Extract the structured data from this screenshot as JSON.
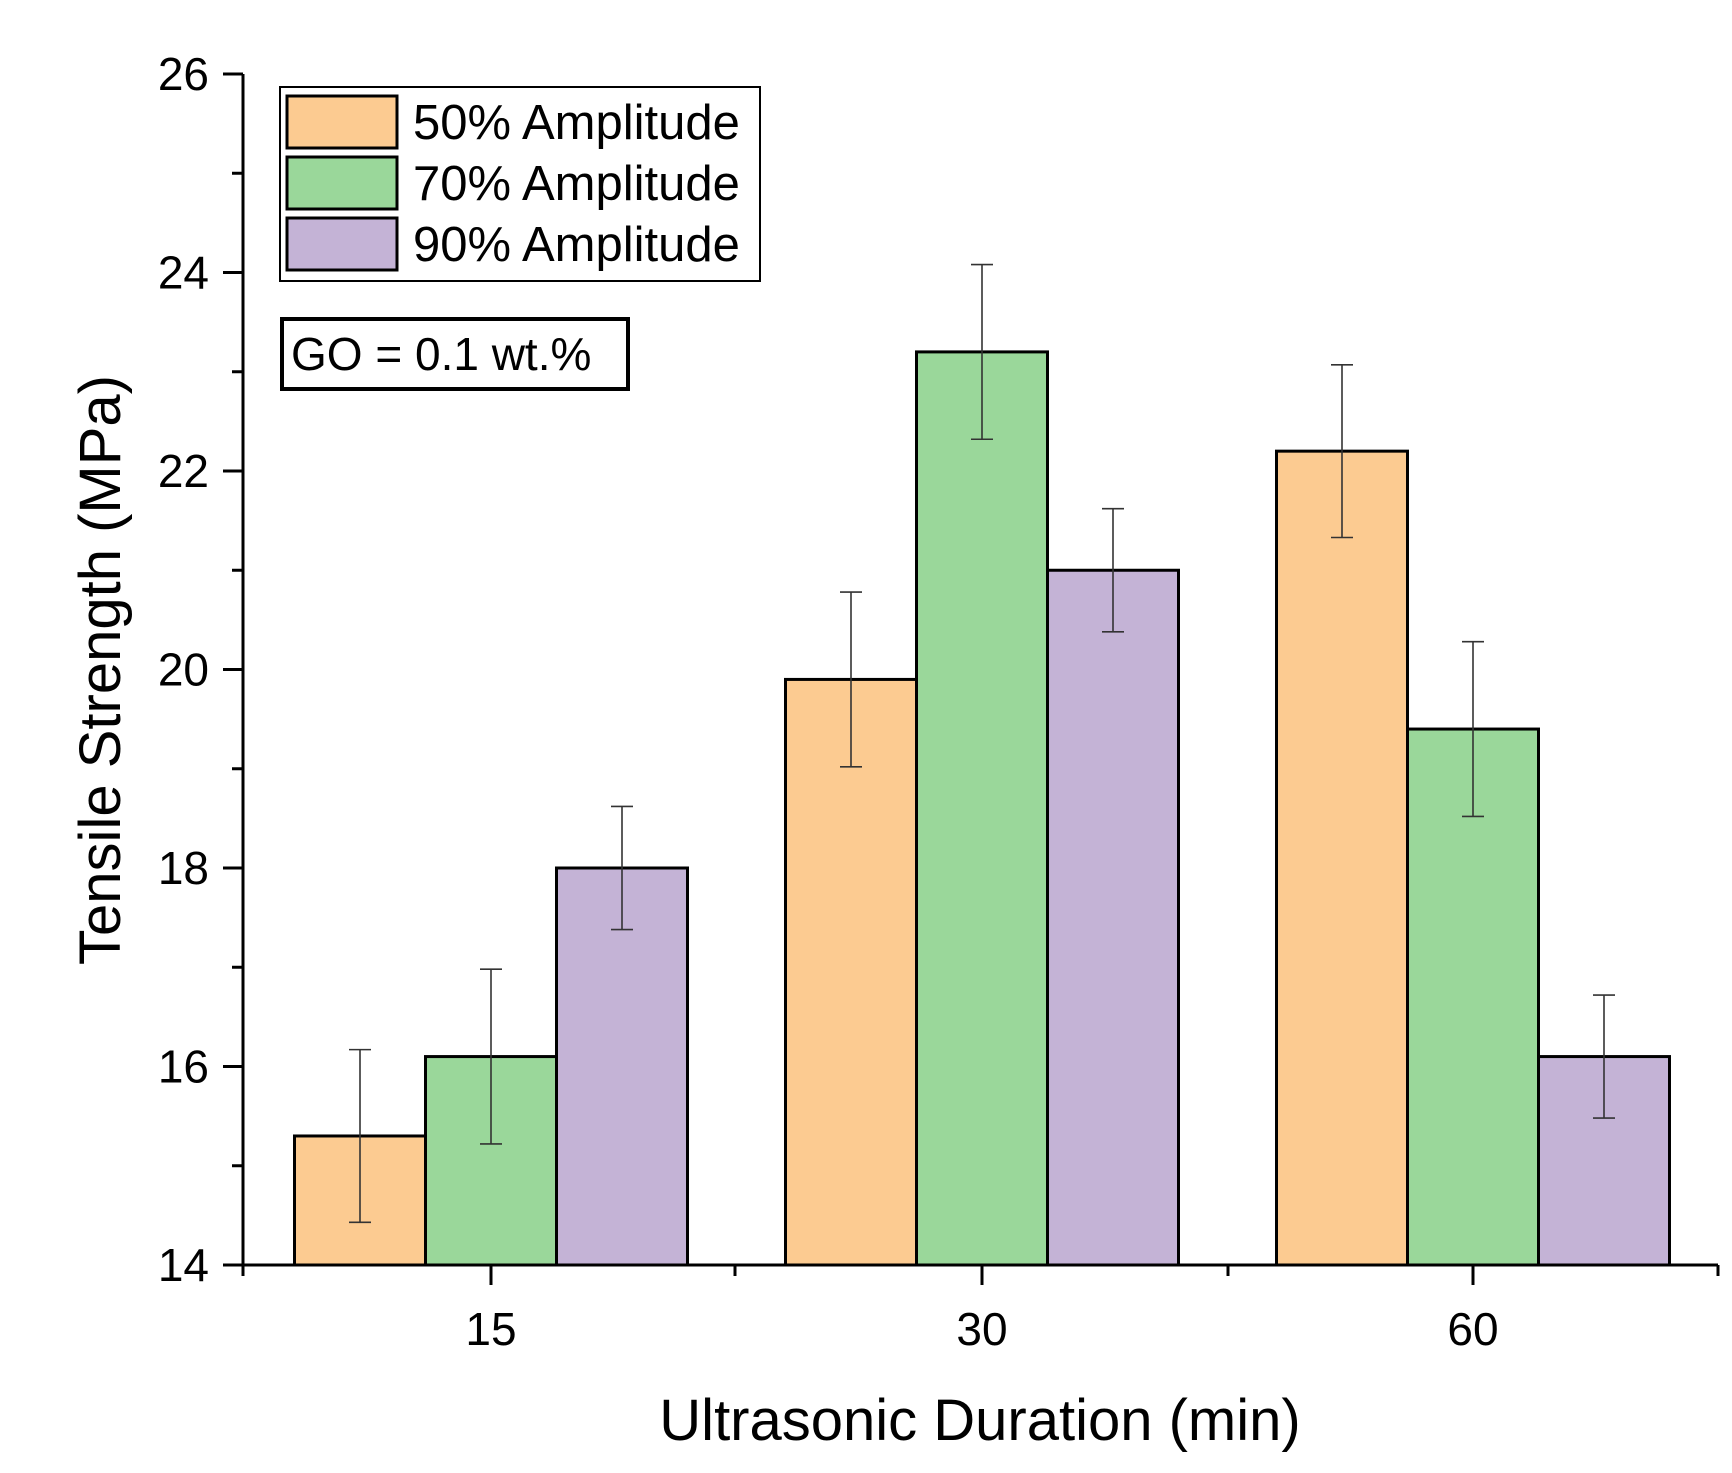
{
  "chart_data": {
    "type": "bar",
    "title": "",
    "xlabel": "Ultrasonic Duration (min)",
    "ylabel": "Tensile Strength (MPa)",
    "categories": [
      "15",
      "30",
      "60"
    ],
    "ylim": [
      14,
      26
    ],
    "yticks": [
      14,
      16,
      18,
      20,
      22,
      24,
      26
    ],
    "grid": false,
    "legend_position": "top-left",
    "series": [
      {
        "name": "50% Amplitude",
        "color": "#FCCB91",
        "values": [
          15.3,
          19.9,
          22.2
        ],
        "errors": [
          0.87,
          0.88,
          0.87
        ]
      },
      {
        "name": "70% Amplitude",
        "color": "#9AD79A",
        "values": [
          16.1,
          23.2,
          19.4
        ],
        "errors": [
          0.88,
          0.88,
          0.88
        ]
      },
      {
        "name": "90% Amplitude",
        "color": "#C4B3D6",
        "values": [
          18.0,
          21.0,
          16.1
        ],
        "errors": [
          0.62,
          0.62,
          0.62
        ]
      }
    ],
    "annotation": "GO = 0.1 wt.%"
  }
}
